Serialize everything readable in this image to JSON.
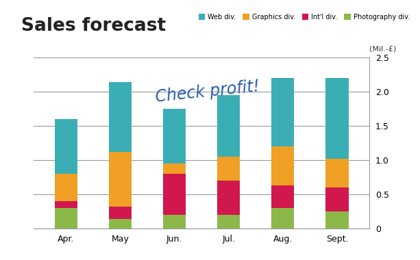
{
  "chart_data": {
    "type": "bar",
    "title": "Sales forecast",
    "stacked": true,
    "ylabel": "(Mil.-£)",
    "annotation": "Check profit!",
    "categories": [
      "Apr.",
      "May",
      "Jun.",
      "Jul.",
      "Aug.",
      "Sept."
    ],
    "series": [
      {
        "name": "Web div.",
        "color": "#3aaeb4",
        "values": [
          0.8,
          1.02,
          0.8,
          0.9,
          1.0,
          1.18
        ]
      },
      {
        "name": "Graphics div.",
        "color": "#f0a024",
        "values": [
          0.4,
          0.8,
          0.15,
          0.35,
          0.57,
          0.42
        ]
      },
      {
        "name": "Int'l div.",
        "color": "#d0174e",
        "values": [
          0.1,
          0.18,
          0.6,
          0.5,
          0.33,
          0.35
        ]
      },
      {
        "name": "Photography div.",
        "color": "#8cb84a",
        "values": [
          0.3,
          0.14,
          0.2,
          0.2,
          0.3,
          0.25
        ]
      }
    ],
    "ylim": [
      0,
      2.5
    ],
    "yticks": [
      0,
      0.5,
      {
        "value": 1,
        "label": "1.0"
      },
      1.5,
      {
        "value": 2,
        "label": "2.0"
      },
      2.5
    ],
    "grid": true,
    "legend": "upper right"
  }
}
